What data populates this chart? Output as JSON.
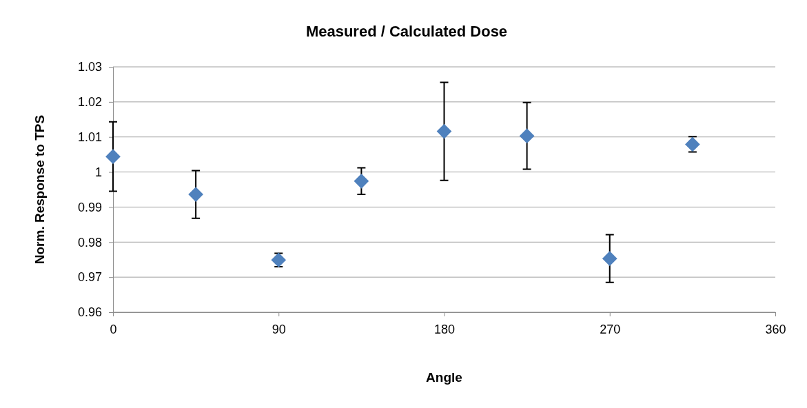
{
  "chart_data": {
    "type": "scatter",
    "title": "Measured / Calculated Dose",
    "xlabel": "Angle",
    "ylabel": "Norm. Response to TPS",
    "x": [
      0,
      45,
      90,
      135,
      180,
      225,
      270,
      315
    ],
    "values": [
      1.0044,
      0.9936,
      0.9749,
      0.9974,
      1.0116,
      1.0103,
      0.9753,
      1.0079
    ],
    "errors": [
      0.0099,
      0.0068,
      0.0019,
      0.0038,
      0.014,
      0.0095,
      0.0068,
      0.0022
    ],
    "color": "#4f81bd",
    "marker": "diamond",
    "xlim": [
      0,
      360
    ],
    "xticks": [
      0,
      90,
      180,
      270,
      360
    ],
    "ylim": [
      0.96,
      1.03
    ],
    "yticks": [
      0.96,
      0.97,
      0.98,
      0.99,
      1,
      1.01,
      1.02,
      1.03
    ],
    "grid": "y"
  }
}
